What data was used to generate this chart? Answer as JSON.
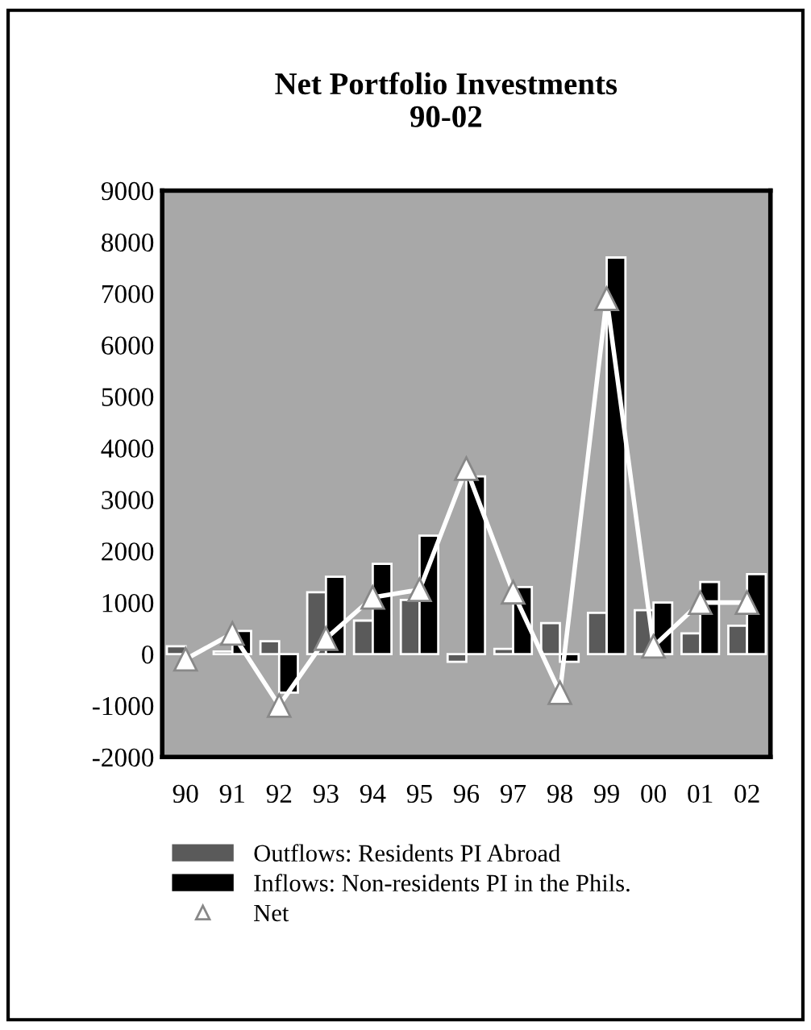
{
  "chart_data": {
    "type": "bar",
    "title": "Net Portfolio Investments\n90-02",
    "categories": [
      "90",
      "91",
      "92",
      "93",
      "94",
      "95",
      "96",
      "97",
      "98",
      "99",
      "00",
      "01",
      "02"
    ],
    "series": [
      {
        "name": "Outflows: Residents PI Abroad",
        "color": "#5a5a5a",
        "values": [
          150,
          50,
          250,
          1200,
          650,
          1050,
          -150,
          100,
          600,
          800,
          850,
          400,
          550
        ]
      },
      {
        "name": "Inflows: Non-residents PI in the Phils.",
        "color": "#000000",
        "values": [
          null,
          450,
          -750,
          1500,
          1750,
          2300,
          3450,
          1300,
          -150,
          7700,
          1000,
          1400,
          1550
        ]
      },
      {
        "name": "Net",
        "type": "line",
        "color": "#ffffff",
        "marker": "triangle",
        "values": [
          -100,
          400,
          -1000,
          300,
          1100,
          1250,
          3600,
          1200,
          -750,
          6900,
          150,
          1000,
          1000
        ]
      }
    ],
    "ylim": [
      -2000,
      9000
    ],
    "yticks": [
      -2000,
      -1000,
      0,
      1000,
      2000,
      3000,
      4000,
      5000,
      6000,
      7000,
      8000,
      9000
    ],
    "grid": false,
    "legend": "bottom"
  }
}
